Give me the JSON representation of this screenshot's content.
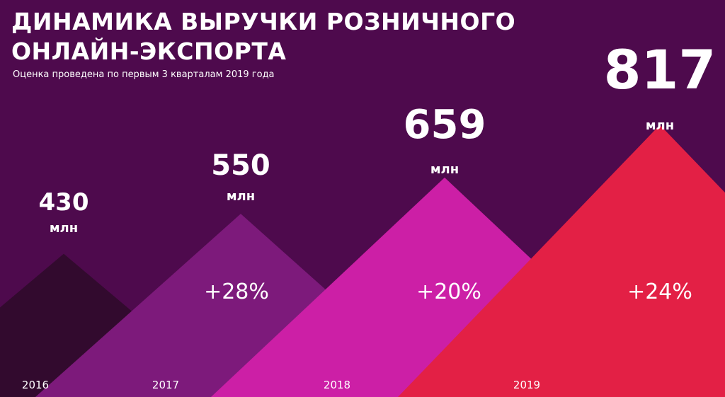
{
  "title_line1": "ДИНАМИКА ВЫРУЧКИ РОЗНИЧНОГО",
  "title_line2": "ОНЛАЙН-ЭКСПОРТА",
  "subtitle": "Оценка проведена по первым 3 кварталам 2019 года",
  "background_color": "#4e0a4d",
  "chart_data": {
    "type": "area",
    "title": "ДИНАМИКА ВЫРУЧКИ РОЗНИЧНОГО ОНЛАЙН-ЭКСПОРТА",
    "subtitle": "Оценка проведена по первым 3 кварталам 2019 года",
    "categories": [
      "2016",
      "2017",
      "2018",
      "2019"
    ],
    "values": [
      430,
      550,
      659,
      817
    ],
    "unit": "млн",
    "value_labels": [
      "430",
      "550",
      "659",
      "817"
    ],
    "growth_labels": [
      "",
      "+28%",
      "+20%",
      "+24%"
    ],
    "colors": [
      "#320a2e",
      "#7d1a7b",
      "#cc1fa6",
      "#e32045"
    ]
  }
}
